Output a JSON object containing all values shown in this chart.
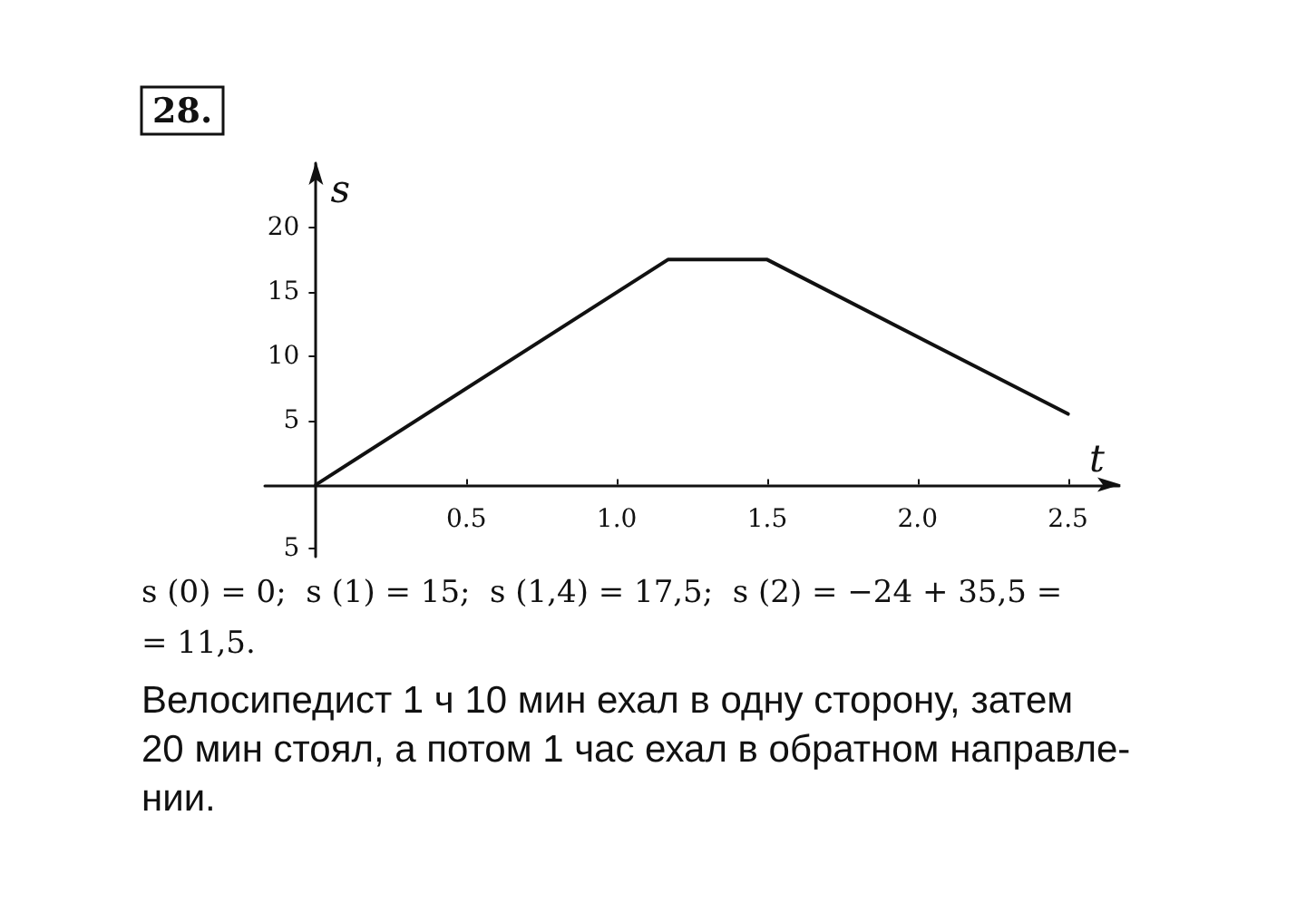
{
  "chart_data": {
    "type": "line",
    "title": "28.",
    "xlabel": "t",
    "ylabel": "s",
    "x": [
      0,
      1.17,
      1.5,
      2.5
    ],
    "series": [
      {
        "color": "#111111",
        "values": [
          0,
          17.5,
          17.5,
          5.5
        ]
      }
    ],
    "xlim": [
      -0.17,
      2.67
    ],
    "xticks": [
      0.5,
      {
        "value": 1,
        "label": "1.0"
      },
      1.5,
      {
        "value": 2,
        "label": "2.0"
      },
      2.5
    ],
    "ylim": [
      -5.6,
      25
    ],
    "yticks": [
      {
        "value": -5,
        "label": "5"
      },
      5,
      10,
      15,
      20
    ],
    "marker": "none",
    "annotations": [
      "s (0) = 0;  s (1) = 15;  s (1,4) = 17,5;  s (2) = −24 + 35,5 =\n= 11,5.",
      "Велосипедист 1 ч 10 мин ехал в одну сторону, затем\n20 мин стоял, а потом 1 час ехал в обратном направле-\nнии."
    ]
  }
}
